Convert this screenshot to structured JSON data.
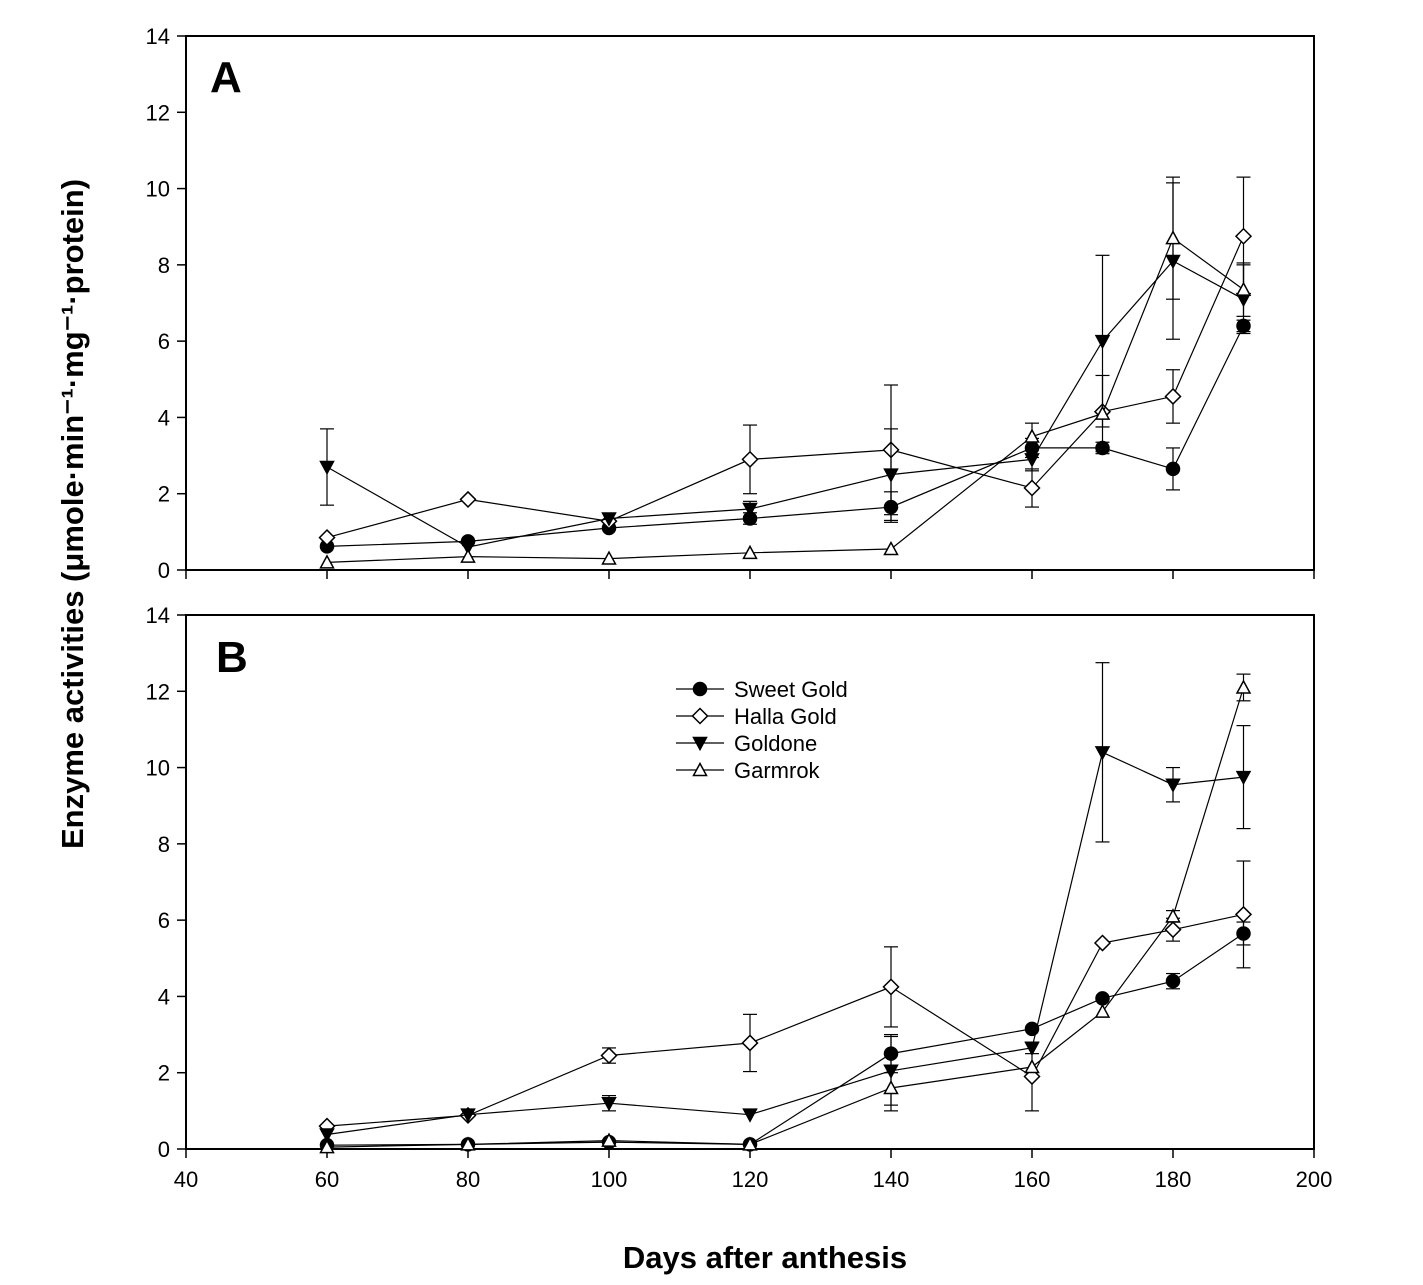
{
  "chart_data": {
    "type": "line",
    "xlabel": "Days after anthesis",
    "ylabel": "Enzyme activities (μmole·min⁻¹·mg⁻¹·protein)",
    "xlim": [
      40,
      200
    ],
    "xticks": [
      40,
      60,
      80,
      100,
      120,
      140,
      160,
      180,
      200
    ],
    "xtick_labels": [
      "40",
      "60",
      "80",
      "100",
      "120",
      "140",
      "160",
      "180",
      "200"
    ],
    "ylim": [
      0,
      14
    ],
    "yticks": [
      0,
      2,
      4,
      6,
      8,
      10,
      12,
      14
    ],
    "ytick_labels": [
      "0",
      "2",
      "4",
      "6",
      "8",
      "10",
      "12",
      "14"
    ],
    "grid": false,
    "legend": {
      "placement": "panel B upper-center",
      "entries": [
        "Sweet Gold",
        "Halla Gold",
        "Goldone",
        "Garmrok"
      ]
    },
    "panels": [
      {
        "label": "A",
        "x": [
          60,
          80,
          100,
          120,
          140,
          160,
          170,
          180,
          190
        ],
        "series": [
          {
            "name": "Sweet Gold",
            "marker": "circle-filled",
            "values": [
              0.62,
              0.75,
              1.1,
              1.35,
              1.65,
              3.2,
              3.2,
              2.65,
              6.4
            ],
            "errors": [
              0.1,
              0.1,
              0.1,
              0.15,
              0.4,
              0.25,
              0.15,
              0.55,
              0.15
            ]
          },
          {
            "name": "Halla Gold",
            "marker": "diamond-open",
            "values": [
              0.85,
              1.85,
              1.28,
              2.9,
              3.15,
              2.15,
              4.15,
              4.55,
              8.75
            ],
            "errors": [
              0.05,
              0.05,
              0.05,
              0.9,
              1.7,
              0.5,
              0.05,
              0.7,
              1.55
            ]
          },
          {
            "name": "Goldone",
            "marker": "triangle-down-filled",
            "values": [
              2.7,
              0.6,
              1.35,
              1.6,
              2.5,
              2.9,
              6.0,
              8.1,
              7.1
            ],
            "errors": [
              1.0,
              0.05,
              0.05,
              0.2,
              1.2,
              0.3,
              2.25,
              2.05,
              0.9
            ]
          },
          {
            "name": "Garmrok",
            "marker": "triangle-up-open",
            "values": [
              0.2,
              0.35,
              0.3,
              0.45,
              0.55,
              3.5,
              4.1,
              8.7,
              7.35
            ],
            "errors": [
              0.05,
              0.05,
              0.05,
              0.05,
              0.05,
              0.35,
              1.0,
              1.6,
              0.7
            ]
          }
        ]
      },
      {
        "label": "B",
        "x": [
          60,
          80,
          100,
          120,
          140,
          160,
          170,
          180,
          190
        ],
        "series": [
          {
            "name": "Sweet Gold",
            "marker": "circle-filled",
            "values": [
              0.1,
              0.12,
              0.18,
              0.12,
              2.5,
              3.15,
              3.95,
              4.4,
              5.65
            ],
            "errors": [
              0.05,
              0.05,
              0.05,
              0.05,
              0.5,
              0.1,
              0.1,
              0.2,
              0.3
            ]
          },
          {
            "name": "Halla Gold",
            "marker": "diamond-open",
            "values": [
              0.6,
              0.88,
              2.45,
              2.78,
              4.25,
              1.9,
              5.4,
              5.75,
              6.15
            ],
            "errors": [
              0.05,
              0.05,
              0.2,
              0.75,
              1.05,
              0.9,
              0.1,
              0.3,
              1.4
            ]
          },
          {
            "name": "Goldone",
            "marker": "triangle-down-filled",
            "values": [
              0.38,
              0.9,
              1.2,
              0.9,
              2.05,
              2.65,
              10.4,
              9.55,
              9.75
            ],
            "errors": [
              0.05,
              0.05,
              0.2,
              0.05,
              0.9,
              0.15,
              2.35,
              0.45,
              1.35
            ]
          },
          {
            "name": "Garmrok",
            "marker": "triangle-up-open",
            "values": [
              0.05,
              0.12,
              0.22,
              0.12,
              1.6,
              2.15,
              3.6,
              6.1,
              12.1
            ],
            "errors": [
              0.05,
              0.05,
              0.05,
              0.05,
              0.6,
              0.1,
              0.1,
              0.15,
              0.35
            ]
          }
        ]
      }
    ]
  }
}
